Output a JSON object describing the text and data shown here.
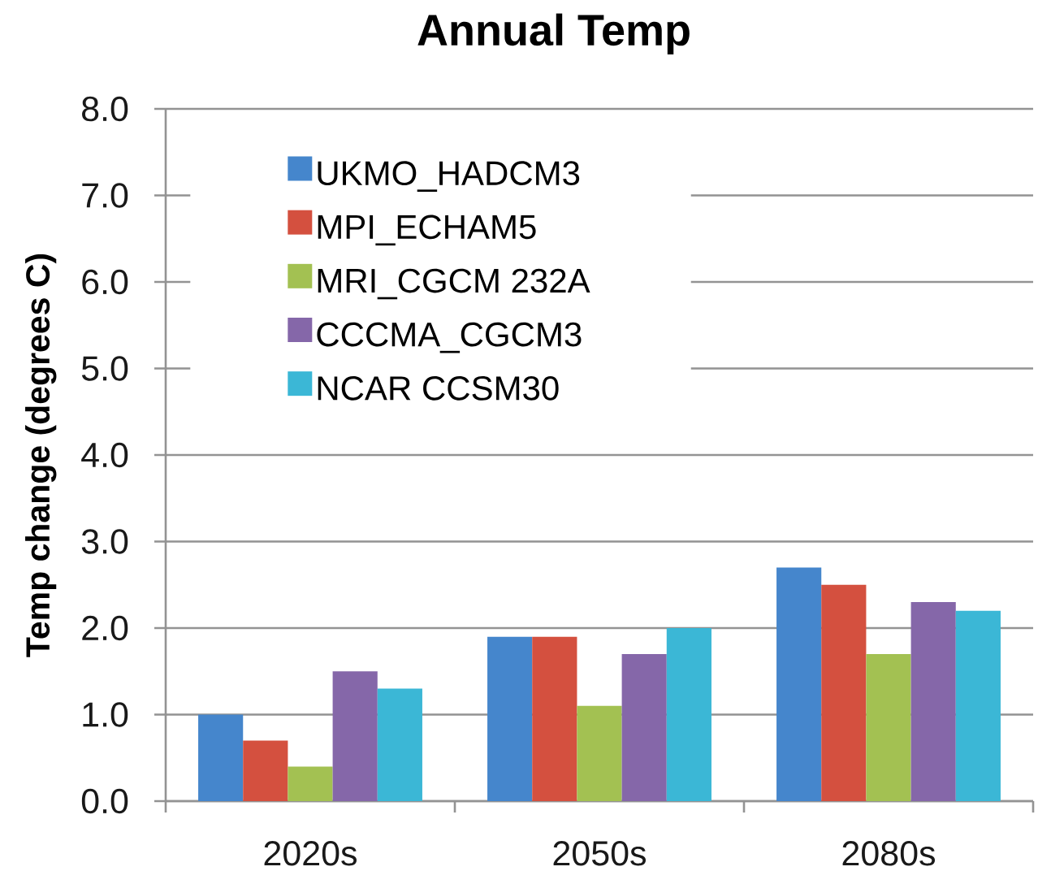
{
  "chart_data": {
    "type": "bar",
    "title": "Annual Temp",
    "ylabel": "Temp change (degrees C)",
    "categories": [
      "2020s",
      "2050s",
      "2080s"
    ],
    "series": [
      {
        "name": "UKMO_HADCM3",
        "color": "#4586cc",
        "values": [
          1.0,
          1.9,
          2.7
        ]
      },
      {
        "name": "MPI_ECHAM5",
        "color": "#d4503f",
        "values": [
          0.7,
          1.9,
          2.5
        ]
      },
      {
        "name": "MRI_CGCM 232A",
        "color": "#a3c152",
        "values": [
          0.4,
          1.1,
          1.7
        ]
      },
      {
        "name": "CCCMA_CGCM3",
        "color": "#8567a9",
        "values": [
          1.5,
          1.7,
          2.3
        ]
      },
      {
        "name": "NCAR CCSM30",
        "color": "#3bb7d6",
        "values": [
          1.3,
          2.0,
          2.2
        ]
      }
    ],
    "ylim": [
      0,
      8
    ],
    "yticks": [
      {
        "value": 0,
        "label": "0.0"
      },
      {
        "value": 1,
        "label": "1.0"
      },
      {
        "value": 2,
        "label": "2.0"
      },
      {
        "value": 3,
        "label": "3.0"
      },
      {
        "value": 4,
        "label": "4.0"
      },
      {
        "value": 5,
        "label": "5.0"
      },
      {
        "value": 6,
        "label": "6.0"
      },
      {
        "value": 7,
        "label": "7.0"
      },
      {
        "value": 8,
        "label": "8.0"
      }
    ],
    "grid": "y",
    "legend": "top left"
  }
}
